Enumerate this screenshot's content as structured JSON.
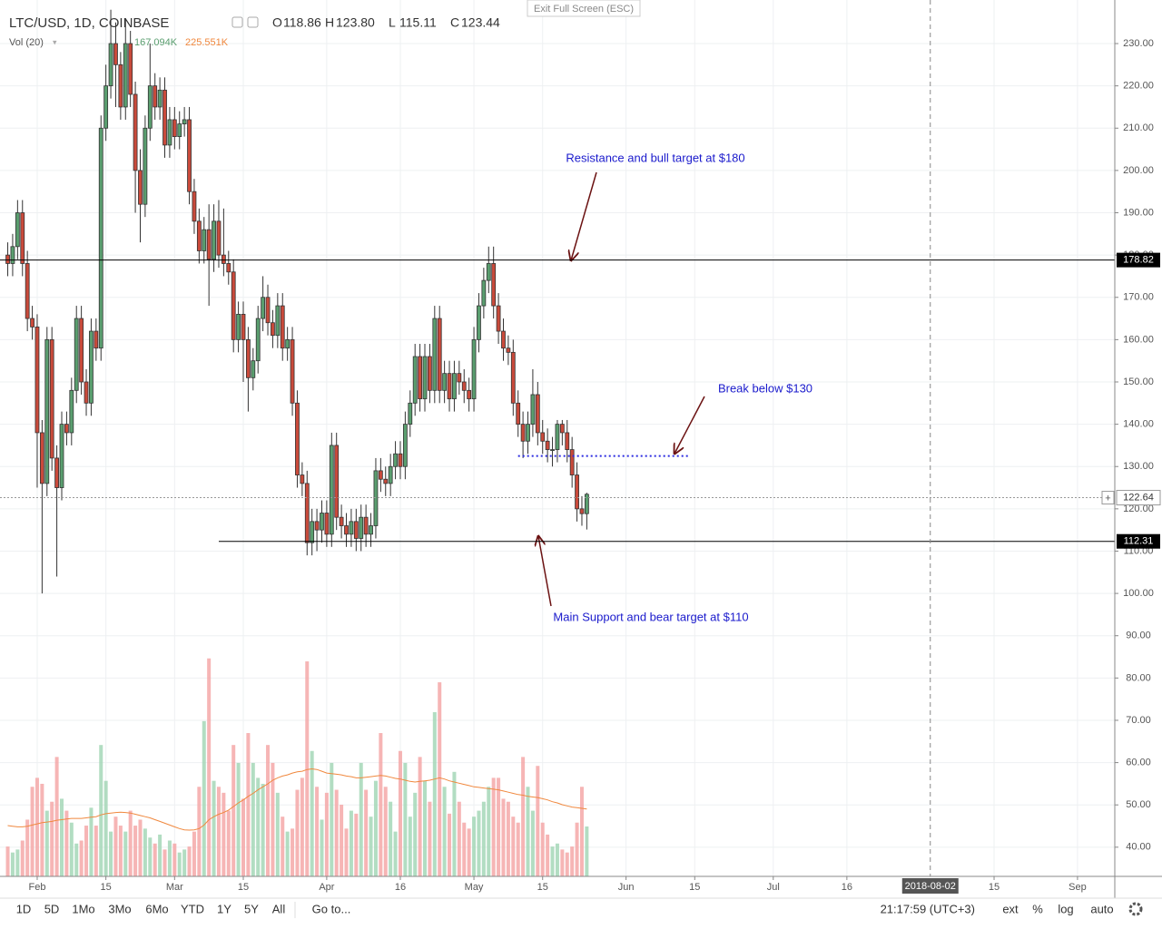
{
  "header": {
    "symbol": "LTC/USD, 1D, COINBASE",
    "ohlc": [
      {
        "key": "O",
        "value": "118.86"
      },
      {
        "key": "H",
        "value": "123.80"
      },
      {
        "key": "L",
        "value": "115.11"
      },
      {
        "key": "C",
        "value": "123.44"
      }
    ],
    "volume_label": "Vol (20)",
    "volume_values": [
      "167.094K",
      "225.551K"
    ]
  },
  "exit_fullscreen": "Exit Full Screen (ESC)",
  "toolbar": {
    "ranges": [
      "1D",
      "5D",
      "1Mo",
      "3Mo",
      "6Mo",
      "YTD",
      "1Y",
      "5Y",
      "All"
    ],
    "goto": "Go to...",
    "clock": "21:17:59 (UTC+3)",
    "options": [
      "ext",
      "%",
      "log",
      "auto"
    ]
  },
  "chart_data": {
    "type": "candlestick",
    "up_color": "#5a9e6f",
    "down_color": "#c94a3b",
    "volume_up_color": "#9fd4b3",
    "volume_down_color": "#f4a3a3",
    "volume_ma_color": "#f0883e",
    "grid": true,
    "xlim": [
      24.42,
      251.6
    ],
    "ylim": [
      33.1,
      240.3
    ],
    "vlim": [
      0,
      2935
    ],
    "xticks": [
      {
        "value": 32,
        "label": "Feb"
      },
      {
        "value": 46,
        "label": "15"
      },
      {
        "value": 60,
        "label": "Mar"
      },
      {
        "value": 74,
        "label": "15"
      },
      {
        "value": 91,
        "label": "Apr"
      },
      {
        "value": 106,
        "label": "16"
      },
      {
        "value": 121,
        "label": "May"
      },
      {
        "value": 135,
        "label": "15"
      },
      {
        "value": 152,
        "label": "Jun"
      },
      {
        "value": 166,
        "label": "15"
      },
      {
        "value": 182,
        "label": "Jul"
      },
      {
        "value": 197,
        "label": "16"
      },
      {
        "value": 227,
        "label": "15"
      },
      {
        "value": 244,
        "label": "Sep"
      }
    ],
    "yticks": [
      {
        "value": 40,
        "label": "40.00"
      },
      {
        "value": 50,
        "label": "50.00"
      },
      {
        "value": 60,
        "label": "60.00"
      },
      {
        "value": 70,
        "label": "70.00"
      },
      {
        "value": 80,
        "label": "80.00"
      },
      {
        "value": 90,
        "label": "90.00"
      },
      {
        "value": 100,
        "label": "100.00"
      },
      {
        "value": 110,
        "label": "110.00"
      },
      {
        "value": 120,
        "label": "120.00"
      },
      {
        "value": 130,
        "label": "130.00"
      },
      {
        "value": 140,
        "label": "140.00"
      },
      {
        "value": 150,
        "label": "150.00"
      },
      {
        "value": 160,
        "label": "160.00"
      },
      {
        "value": 170,
        "label": "170.00"
      },
      {
        "value": 180,
        "label": "180.00"
      },
      {
        "value": 190,
        "label": "190.00"
      },
      {
        "value": 200,
        "label": "200.00"
      },
      {
        "value": 210,
        "label": "210.00"
      },
      {
        "value": 220,
        "label": "220.00"
      },
      {
        "value": 230,
        "label": "230.00"
      }
    ],
    "crosshair": {
      "x": 214,
      "label": "2018-08-02"
    },
    "last_price": 122.64,
    "levels": [
      {
        "value": 178.82,
        "color": "#000000"
      },
      {
        "value": 112.31,
        "from": 69,
        "color": "#000000"
      }
    ],
    "dotted_levels": [
      {
        "value": 132.5,
        "from": 130,
        "to": 165,
        "color": "#2a2ae0"
      }
    ],
    "annotations": [
      {
        "text": "Resistance and bull target at $180"
      },
      {
        "text": "Break below $130"
      },
      {
        "text": "Main Support and bear target at $110"
      }
    ],
    "x": [
      26,
      27,
      28,
      29,
      30,
      31,
      32,
      33,
      34,
      35,
      36,
      37,
      38,
      39,
      40,
      41,
      42,
      43,
      44,
      45,
      46,
      47,
      48,
      49,
      50,
      51,
      52,
      53,
      54,
      55,
      56,
      57,
      58,
      59,
      60,
      61,
      62,
      63,
      64,
      65,
      66,
      67,
      68,
      69,
      70,
      71,
      72,
      73,
      74,
      75,
      76,
      77,
      78,
      79,
      80,
      81,
      82,
      83,
      84,
      85,
      86,
      87,
      88,
      89,
      90,
      91,
      92,
      93,
      94,
      95,
      96,
      97,
      98,
      99,
      100,
      101,
      102,
      103,
      104,
      105,
      106,
      107,
      108,
      109,
      110,
      111,
      112,
      113,
      114,
      115,
      116,
      117,
      118,
      119,
      120,
      121,
      122,
      123,
      124,
      125,
      126,
      127,
      128,
      129,
      130,
      131,
      132,
      133,
      134,
      135,
      136,
      137,
      138,
      139,
      140,
      141,
      142,
      143,
      144
    ],
    "candles": [
      [
        180,
        183,
        175,
        178
      ],
      [
        178,
        185,
        175,
        182
      ],
      [
        182,
        193,
        179,
        190
      ],
      [
        190,
        193,
        175,
        178
      ],
      [
        178,
        181,
        162,
        165
      ],
      [
        165,
        168,
        160,
        163
      ],
      [
        163,
        166,
        125,
        138
      ],
      [
        138,
        141,
        100,
        126
      ],
      [
        126,
        163,
        123,
        160
      ],
      [
        160,
        163,
        129,
        132
      ],
      [
        132,
        135,
        104,
        125
      ],
      [
        125,
        143,
        122,
        140
      ],
      [
        140,
        143,
        135,
        138
      ],
      [
        138,
        151,
        135,
        148
      ],
      [
        148,
        168,
        145,
        165
      ],
      [
        165,
        168,
        147,
        150
      ],
      [
        150,
        153,
        142,
        145
      ],
      [
        145,
        165,
        142,
        162
      ],
      [
        162,
        165,
        155,
        158
      ],
      [
        158,
        213,
        155,
        210
      ],
      [
        210,
        225,
        207,
        220
      ],
      [
        220,
        238,
        217,
        230
      ],
      [
        230,
        235,
        215,
        225
      ],
      [
        225,
        228,
        212,
        215
      ],
      [
        215,
        236,
        212,
        230
      ],
      [
        230,
        233,
        215,
        218
      ],
      [
        218,
        221,
        190,
        200
      ],
      [
        200,
        205,
        183,
        192
      ],
      [
        192,
        213,
        189,
        210
      ],
      [
        210,
        230,
        207,
        220
      ],
      [
        220,
        223,
        212,
        215
      ],
      [
        215,
        222,
        212,
        219
      ],
      [
        219,
        222,
        203,
        206
      ],
      [
        206,
        215,
        203,
        212
      ],
      [
        212,
        215,
        205,
        208
      ],
      [
        208,
        214,
        205,
        211
      ],
      [
        211,
        215,
        208,
        212
      ],
      [
        212,
        215,
        192,
        195
      ],
      [
        195,
        198,
        185,
        188
      ],
      [
        188,
        191,
        178,
        181
      ],
      [
        181,
        189,
        178,
        186
      ],
      [
        186,
        192,
        168,
        179
      ],
      [
        179,
        192,
        176,
        188
      ],
      [
        188,
        193,
        177,
        180
      ],
      [
        180,
        191,
        175,
        178
      ],
      [
        178,
        181,
        173,
        176
      ],
      [
        176,
        179,
        157,
        160
      ],
      [
        160,
        169,
        157,
        166
      ],
      [
        166,
        169,
        150,
        160
      ],
      [
        160,
        163,
        143,
        151
      ],
      [
        151,
        158,
        148,
        155
      ],
      [
        155,
        168,
        152,
        165
      ],
      [
        165,
        175,
        162,
        170
      ],
      [
        170,
        173,
        161,
        164
      ],
      [
        164,
        167,
        158,
        161
      ],
      [
        161,
        171,
        158,
        168
      ],
      [
        168,
        171,
        155,
        158
      ],
      [
        158,
        163,
        155,
        160
      ],
      [
        160,
        163,
        142,
        145
      ],
      [
        145,
        148,
        125,
        128
      ],
      [
        128,
        131,
        123,
        126
      ],
      [
        126,
        129,
        109,
        112
      ],
      [
        112,
        120,
        109,
        117
      ],
      [
        117,
        120,
        110,
        115
      ],
      [
        115,
        122,
        112,
        119
      ],
      [
        119,
        122,
        111,
        114
      ],
      [
        114,
        138,
        111,
        135
      ],
      [
        135,
        138,
        115,
        118
      ],
      [
        118,
        121,
        113,
        116
      ],
      [
        116,
        119,
        111,
        114
      ],
      [
        114,
        120,
        111,
        117
      ],
      [
        117,
        120,
        110,
        113
      ],
      [
        113,
        121,
        110,
        118
      ],
      [
        118,
        121,
        111,
        114
      ],
      [
        114,
        119,
        111,
        116
      ],
      [
        116,
        132,
        113,
        129
      ],
      [
        129,
        132,
        124,
        127
      ],
      [
        127,
        130,
        123,
        126
      ],
      [
        126,
        133,
        123,
        130
      ],
      [
        130,
        136,
        127,
        133
      ],
      [
        133,
        136,
        127,
        130
      ],
      [
        130,
        143,
        127,
        140
      ],
      [
        140,
        148,
        137,
        145
      ],
      [
        145,
        159,
        142,
        156
      ],
      [
        156,
        159,
        143,
        146
      ],
      [
        146,
        159,
        143,
        156
      ],
      [
        156,
        159,
        145,
        148
      ],
      [
        148,
        168,
        145,
        165
      ],
      [
        165,
        168,
        145,
        148
      ],
      [
        148,
        155,
        145,
        152
      ],
      [
        152,
        155,
        143,
        146
      ],
      [
        146,
        155,
        143,
        152
      ],
      [
        152,
        155,
        147,
        150
      ],
      [
        150,
        153,
        145,
        148
      ],
      [
        148,
        151,
        143,
        146
      ],
      [
        146,
        163,
        143,
        160
      ],
      [
        160,
        171,
        157,
        168
      ],
      [
        168,
        177,
        165,
        174
      ],
      [
        174,
        182,
        171,
        178
      ],
      [
        178,
        182,
        165,
        168
      ],
      [
        168,
        171,
        159,
        162
      ],
      [
        162,
        165,
        155,
        158
      ],
      [
        158,
        161,
        154,
        157
      ],
      [
        157,
        160,
        142,
        145
      ],
      [
        145,
        148,
        137,
        140
      ],
      [
        140,
        143,
        132,
        136
      ],
      [
        136,
        143,
        133,
        140
      ],
      [
        140,
        153,
        137,
        147
      ],
      [
        147,
        150,
        135,
        138
      ],
      [
        138,
        141,
        133,
        136
      ],
      [
        136,
        139,
        131,
        134
      ],
      [
        134,
        137,
        130,
        134
      ],
      [
        134,
        141,
        131,
        140
      ],
      [
        140,
        141,
        135,
        138
      ],
      [
        138,
        141,
        131,
        134
      ],
      [
        134,
        137,
        125,
        128
      ],
      [
        128,
        131,
        117,
        120
      ],
      [
        120,
        123,
        116,
        118.86
      ],
      [
        118.86,
        123.8,
        115.11,
        123.44
      ]
    ],
    "volume": [
      100,
      80,
      90,
      120,
      190,
      300,
      330,
      310,
      220,
      250,
      400,
      260,
      220,
      180,
      110,
      120,
      170,
      230,
      170,
      440,
      320,
      150,
      200,
      170,
      150,
      220,
      170,
      190,
      160,
      130,
      110,
      140,
      90,
      120,
      110,
      80,
      90,
      100,
      150,
      300,
      520,
      730,
      320,
      300,
      280,
      220,
      440,
      380,
      260,
      480,
      380,
      330,
      310,
      440,
      380,
      280,
      200,
      150,
      160,
      290,
      330,
      720,
      420,
      300,
      190,
      280,
      380,
      290,
      240,
      160,
      220,
      210,
      380,
      290,
      200,
      320,
      480,
      300,
      250,
      150,
      420,
      380,
      200,
      280,
      400,
      320,
      250,
      550,
      650,
      300,
      210,
      350,
      250,
      180,
      160,
      200,
      220,
      250,
      300,
      330,
      330,
      260,
      250,
      200,
      180,
      400,
      300,
      220,
      370,
      180,
      140,
      100,
      110,
      90,
      80,
      100,
      180,
      300,
      167.094
    ],
    "volume_ma": [
      170,
      168,
      166,
      166,
      168,
      172,
      176,
      180,
      182,
      184,
      188,
      190,
      192,
      194,
      194,
      194,
      196,
      198,
      200,
      206,
      210,
      212,
      214,
      215,
      214,
      212,
      208,
      204,
      200,
      196,
      190,
      184,
      178,
      172,
      166,
      160,
      156,
      155,
      156,
      160,
      172,
      190,
      200,
      208,
      214,
      222,
      234,
      246,
      256,
      268,
      278,
      290,
      300,
      310,
      322,
      330,
      336,
      340,
      346,
      350,
      352,
      358,
      360,
      358,
      352,
      346,
      344,
      342,
      340,
      336,
      334,
      330,
      330,
      332,
      334,
      336,
      338,
      336,
      332,
      328,
      326,
      322,
      318,
      316,
      318,
      320,
      322,
      326,
      330,
      326,
      320,
      316,
      312,
      308,
      304,
      300,
      298,
      296,
      294,
      292,
      290,
      286,
      282,
      278,
      274,
      272,
      268,
      266,
      264,
      260,
      256,
      250,
      246,
      240,
      236,
      232,
      230,
      228,
      225.551
    ]
  }
}
